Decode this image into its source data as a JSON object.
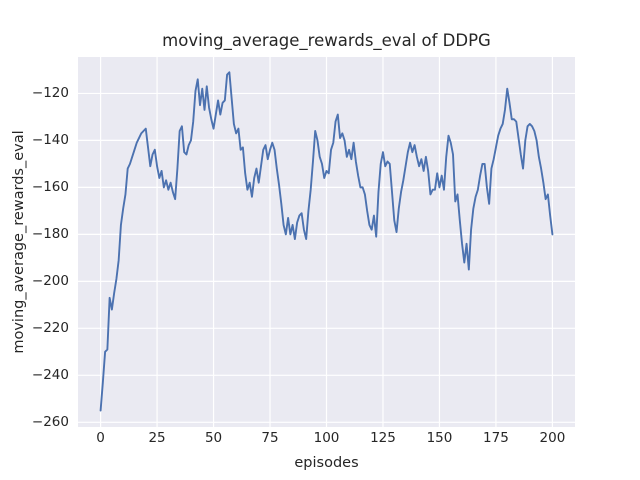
{
  "figure": {
    "background": "#ffffff"
  },
  "chart_data": {
    "type": "line",
    "title": "moving_average_rewards_eval of DDPG",
    "xlabel": "episodes",
    "ylabel": "moving_average_rewards_eval",
    "legend_position": "none",
    "grid": true,
    "style": "seaborn-darkgrid",
    "plot_bg_color": "#EAEAF2",
    "grid_color": "#FFFFFF",
    "text_color": "#262626",
    "xlim": [
      -10,
      210
    ],
    "ylim": [
      -262,
      -104.5
    ],
    "xticks": [
      0,
      25,
      50,
      75,
      100,
      125,
      150,
      175,
      200
    ],
    "yticks": [
      -120,
      -140,
      -160,
      -180,
      -200,
      -220,
      -240,
      -260
    ],
    "xtick_labels": [
      "0",
      "25",
      "50",
      "75",
      "100",
      "125",
      "150",
      "175",
      "200"
    ],
    "ytick_labels": [
      "−120",
      "−140",
      "−160",
      "−180",
      "−200",
      "−220",
      "−240",
      "−260"
    ],
    "x_start": 0,
    "x_step": 1,
    "series": [
      {
        "name": "moving_average_rewards_eval",
        "color": "#4C72B0",
        "linewidth": 1.9,
        "values": [
          -255,
          -243,
          -230,
          -229,
          -207,
          -212,
          -205,
          -199,
          -191,
          -176,
          -169,
          -163,
          -152,
          -150,
          -147,
          -144,
          -141,
          -139,
          -137,
          -136,
          -135,
          -143,
          -151,
          -146,
          -144,
          -151,
          -156,
          -153,
          -160,
          -157,
          -161,
          -158,
          -162,
          -165,
          -152,
          -136,
          -134,
          -145,
          -146,
          -142,
          -140,
          -132,
          -119,
          -114,
          -125,
          -118,
          -127,
          -117,
          -126,
          -131,
          -135,
          -129,
          -123,
          -129,
          -124,
          -123,
          -112,
          -111,
          -122,
          -133,
          -137,
          -135,
          -144,
          -143,
          -154,
          -161,
          -158,
          -164,
          -156,
          -152,
          -158,
          -151,
          -144,
          -142,
          -148,
          -144,
          -141,
          -144,
          -152,
          -159,
          -167,
          -176,
          -180,
          -173,
          -180,
          -176,
          -182,
          -175,
          -172,
          -171,
          -178,
          -182,
          -170,
          -161,
          -149,
          -136,
          -140,
          -147,
          -150,
          -156,
          -153,
          -154,
          -144,
          -141,
          -132,
          -129,
          -139,
          -137,
          -140,
          -147,
          -144,
          -148,
          -141,
          -149,
          -155,
          -160,
          -160,
          -163,
          -170,
          -176,
          -178,
          -172,
          -181,
          -162,
          -150,
          -145,
          -151,
          -149,
          -150,
          -162,
          -174,
          -179,
          -169,
          -162,
          -157,
          -151,
          -145,
          -141,
          -145,
          -142,
          -147,
          -151,
          -148,
          -153,
          -147,
          -153,
          -163,
          -161,
          -161,
          -154,
          -160,
          -155,
          -161,
          -147,
          -138,
          -141,
          -146,
          -166,
          -163,
          -174,
          -184,
          -192,
          -184,
          -195,
          -178,
          -169,
          -164,
          -161,
          -155,
          -150,
          -150,
          -160,
          -167,
          -152,
          -148,
          -143,
          -138,
          -135,
          -133,
          -127,
          -118,
          -124,
          -131,
          -131,
          -132,
          -139,
          -146,
          -152,
          -140,
          -134,
          -133,
          -134,
          -136,
          -140,
          -147,
          -152,
          -158,
          -165,
          -163,
          -172,
          -180
        ]
      }
    ]
  }
}
